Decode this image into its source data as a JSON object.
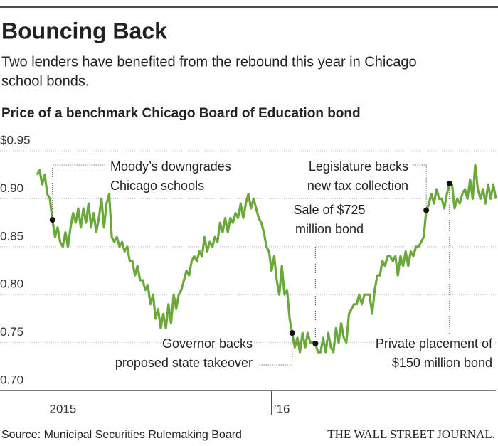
{
  "header": {
    "title": "Bouncing Back",
    "subtitle": [
      "Two lenders have benefited from the rebound this year in Chicago",
      "school bonds."
    ]
  },
  "chart_data": {
    "type": "line",
    "title": "Price of a benchmark Chicago Board of Education bond",
    "color": "#6aa83c",
    "grid": true,
    "categories": [
      null,
      null,
      null,
      null,
      "2015",
      null,
      null,
      null,
      null,
      null,
      null,
      null,
      null,
      null,
      null,
      null,
      null,
      null,
      null,
      null,
      null,
      null,
      null,
      null,
      null,
      null,
      null,
      null,
      null,
      null,
      null,
      null,
      null,
      null,
      null,
      null,
      null,
      null,
      null,
      null,
      null,
      null,
      null,
      null,
      null,
      null,
      null,
      null,
      null,
      null,
      null,
      null,
      null,
      null,
      null,
      null,
      null,
      null,
      null,
      null,
      null,
      null,
      null,
      null,
      null,
      null,
      null,
      null,
      null,
      null,
      null,
      null,
      null,
      null,
      null,
      null,
      null,
      null,
      null,
      null,
      null,
      null,
      null,
      null,
      null,
      null,
      null,
      null,
      null,
      null,
      null,
      "’16",
      null,
      null,
      null,
      null,
      null,
      null,
      null,
      null,
      null,
      null,
      null,
      null,
      null,
      null,
      null,
      null,
      null,
      null,
      null,
      null,
      null,
      null,
      null,
      null,
      null,
      null,
      null,
      null,
      null,
      null,
      null,
      null,
      null,
      null,
      null,
      null,
      null,
      null,
      null,
      null,
      null,
      null,
      null,
      null,
      null,
      null,
      null,
      null,
      null,
      null,
      null,
      null,
      null,
      null,
      null,
      null,
      null,
      null,
      null,
      null,
      null,
      null,
      null,
      null,
      null,
      null,
      null,
      null,
      null,
      null,
      null,
      null,
      null,
      null,
      null,
      null,
      null,
      null,
      null,
      null,
      null,
      null,
      null,
      null,
      null,
      null,
      null
    ],
    "values": [
      0.925,
      0.93,
      0.915,
      0.925,
      0.905,
      0.9,
      0.878,
      0.86,
      0.87,
      0.855,
      0.85,
      0.865,
      0.85,
      0.87,
      0.885,
      0.875,
      0.89,
      0.87,
      0.89,
      0.875,
      0.895,
      0.87,
      0.885,
      0.865,
      0.88,
      0.9,
      0.87,
      0.895,
      0.905,
      0.86,
      0.855,
      0.86,
      0.85,
      0.855,
      0.845,
      0.85,
      0.835,
      0.835,
      0.82,
      0.83,
      0.815,
      0.815,
      0.805,
      0.81,
      0.79,
      0.8,
      0.775,
      0.785,
      0.765,
      0.78,
      0.765,
      0.79,
      0.77,
      0.8,
      0.785,
      0.8,
      0.805,
      0.815,
      0.825,
      0.82,
      0.835,
      0.84,
      0.835,
      0.845,
      0.84,
      0.86,
      0.845,
      0.855,
      0.85,
      0.86,
      0.855,
      0.875,
      0.865,
      0.88,
      0.865,
      0.88,
      0.875,
      0.885,
      0.88,
      0.895,
      0.88,
      0.895,
      0.905,
      0.89,
      0.9,
      0.89,
      0.88,
      0.875,
      0.865,
      0.85,
      0.845,
      0.825,
      0.84,
      0.815,
      0.8,
      0.83,
      0.8,
      0.805,
      0.775,
      0.76,
      0.745,
      0.755,
      0.74,
      0.76,
      0.745,
      0.76,
      0.75,
      0.75,
      0.749,
      0.74,
      0.74,
      0.755,
      0.74,
      0.76,
      0.745,
      0.74,
      0.765,
      0.75,
      0.77,
      0.755,
      0.75,
      0.78,
      0.785,
      0.79,
      0.79,
      0.8,
      0.79,
      0.8,
      0.8,
      0.8,
      0.78,
      0.805,
      0.82,
      0.82,
      0.835,
      0.83,
      0.84,
      0.84,
      0.835,
      0.84,
      0.82,
      0.84,
      0.83,
      0.845,
      0.83,
      0.845,
      0.84,
      0.85,
      0.85,
      0.855,
      0.86,
      0.888,
      0.895,
      0.905,
      0.895,
      0.91,
      0.9,
      0.9,
      0.89,
      0.905,
      0.916,
      0.915,
      0.89,
      0.9,
      0.895,
      0.905,
      0.91,
      0.9,
      0.92,
      0.9,
      0.935,
      0.91,
      0.9,
      0.91,
      0.895,
      0.915,
      0.9,
      0.915,
      0.9
    ],
    "ylim": [
      0.7,
      0.95
    ],
    "yticks": [
      {
        "value": 0.95,
        "label": "$0.95"
      },
      {
        "value": 0.9,
        "label": "0.90"
      },
      0.85,
      {
        "value": 0.8,
        "label": "0.80"
      },
      0.75,
      {
        "value": 0.7,
        "label": "0.70"
      }
    ],
    "annotations": [
      {
        "lines": [
          "Moody’s downgrades",
          "Chicago schools"
        ]
      },
      {
        "lines": [
          "Governor backs",
          "proposed state takeover"
        ]
      },
      {
        "lines": [
          "Sale of $725",
          "million bond"
        ]
      },
      {
        "lines": [
          "Legislature backs",
          "new tax collection"
        ]
      },
      {
        "lines": [
          "Private placement of",
          "$150 million bond"
        ]
      }
    ]
  },
  "footer": {
    "source": "Source: Municipal Securities Rulemaking Board",
    "publisher": "THE WALL STREET JOURNAL."
  }
}
